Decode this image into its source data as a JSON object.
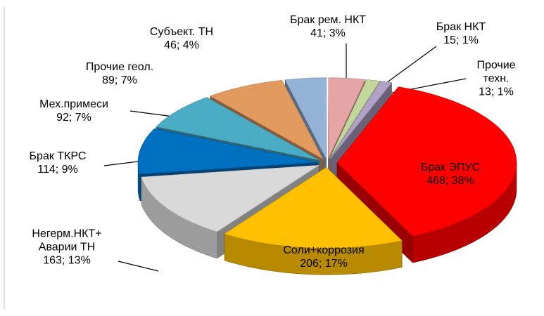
{
  "chart_data": {
    "type": "pie3d",
    "categories": [
      "Брак ЭПУС",
      "Соли+коррозия",
      "Негерм.НКТ+\nАварии ТН",
      "Брак  ТКРС",
      "Мех.примеси",
      "Прочие геол.",
      "Субъект. ТН",
      "Брак рем. НКТ",
      "Брак НКТ",
      "Прочие техн."
    ],
    "values": [
      468,
      206,
      163,
      114,
      92,
      89,
      46,
      41,
      15,
      13
    ],
    "value_labels": [
      "468; 38%",
      "206; 17%",
      "163; 13%",
      "114; 9%",
      "92; 7%",
      "89; 7%",
      "46; 4%",
      "41; 3%",
      "15; 1%",
      "13; 1%"
    ],
    "colors": [
      "#ff0000",
      "#ffc000",
      "#d9d9d9",
      "#0070c0",
      "#4bacc6",
      "#e39a5e",
      "#95b3d7",
      "#e6a5a5",
      "#c3d69b",
      "#b3a2c7"
    ]
  }
}
